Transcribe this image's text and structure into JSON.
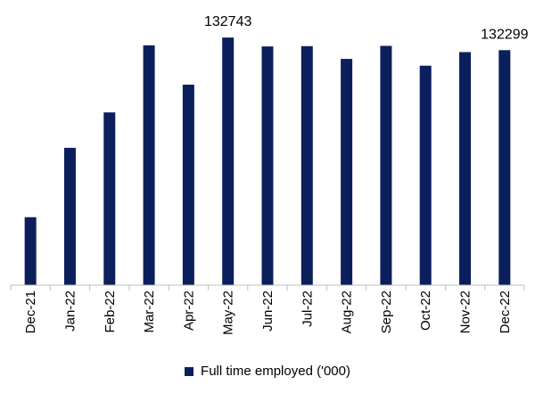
{
  "chart_data": {
    "type": "bar",
    "categories": [
      "Dec-21",
      "Jan-22",
      "Feb-22",
      "Mar-22",
      "Apr-22",
      "May-22",
      "Jun-22",
      "Jul-22",
      "Aug-22",
      "Sep-22",
      "Oct-22",
      "Nov-22",
      "Dec-22"
    ],
    "series": [
      {
        "name": "Full time employed ('000)",
        "values": [
          126400,
          128850,
          130100,
          132470,
          131080,
          132743,
          132430,
          132440,
          131990,
          132450,
          131750,
          132230,
          132299
        ]
      }
    ],
    "data_labels": [
      {
        "category": "May-22",
        "text": "132743"
      },
      {
        "category": "Dec-22",
        "text": "132299"
      }
    ],
    "ylim": [
      124000,
      133000
    ],
    "grid": false,
    "legend_position": "bottom",
    "colors": {
      "bar": "#0b1f5c",
      "axis": "#bfbfbf"
    }
  }
}
